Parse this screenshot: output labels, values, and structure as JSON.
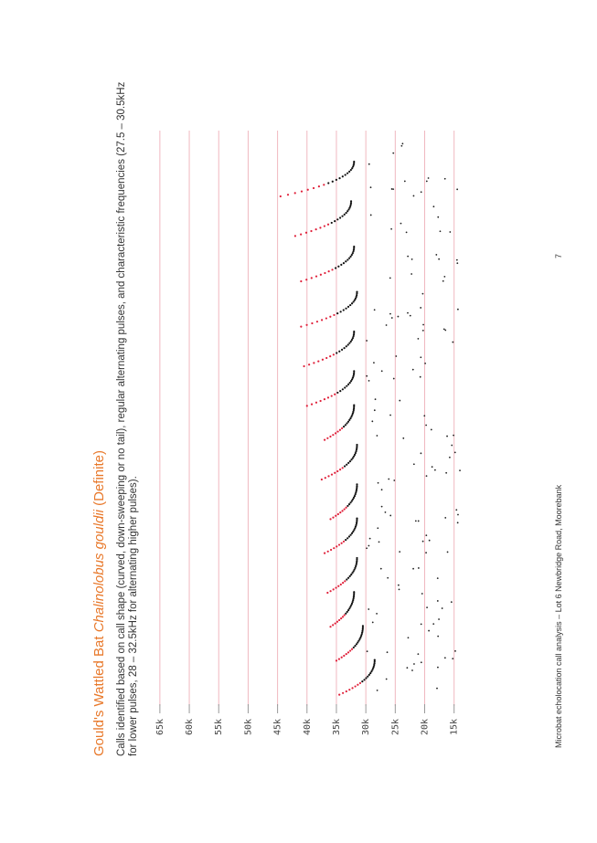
{
  "document": {
    "title_prefix": "Gould's Wattled Bat ",
    "title_species": "Chalinolobus gouldii",
    "title_suffix": " (Definite)",
    "description": "Calls identified based on call shape (curved, down-sweeping or no tail), regular alternating pulses, and characteristic frequencies (27.5 – 30.5kHz for lower pulses, 28 – 32.5kHz for alternating higher pulses).",
    "footer": "Microbat echolocation call analysis – Lot 6 Newbridge Road, Moorebank",
    "page_number": "7"
  },
  "colors": {
    "title": "#e8782a",
    "gridline": "#f0b8c0",
    "call_dots": "#111111",
    "call_highlight": "#e0203a",
    "noise_dots": "#222222"
  },
  "chart_data": {
    "type": "scatter",
    "title": "",
    "xlabel": "",
    "ylabel": "",
    "ylim": [
      12,
      67
    ],
    "grid": true,
    "y_ticks": [
      {
        "value": 65,
        "label": "65k"
      },
      {
        "value": 60,
        "label": "60k"
      },
      {
        "value": 55,
        "label": "55k"
      },
      {
        "value": 50,
        "label": "50k"
      },
      {
        "value": 45,
        "label": "45k"
      },
      {
        "value": 40,
        "label": "40k"
      },
      {
        "value": 35,
        "label": "35k"
      },
      {
        "value": 30,
        "label": "30k"
      },
      {
        "value": 25,
        "label": "25k"
      },
      {
        "value": 20,
        "label": "20k"
      },
      {
        "value": 15,
        "label": "15k"
      }
    ],
    "calls": [
      {
        "t": 0.02,
        "start_khz": 34.5,
        "end_khz": 28.5
      },
      {
        "t": 0.08,
        "start_khz": 35.0,
        "end_khz": 30.5
      },
      {
        "t": 0.14,
        "start_khz": 36.0,
        "end_khz": 32.0
      },
      {
        "t": 0.2,
        "start_khz": 36.5,
        "end_khz": 31.5
      },
      {
        "t": 0.27,
        "start_khz": 37.0,
        "end_khz": 31.5
      },
      {
        "t": 0.33,
        "start_khz": 36.0,
        "end_khz": 31.5
      },
      {
        "t": 0.4,
        "start_khz": 37.5,
        "end_khz": 31.5
      },
      {
        "t": 0.47,
        "start_khz": 37.0,
        "end_khz": 32.0
      },
      {
        "t": 0.53,
        "start_khz": 40.0,
        "end_khz": 32.0
      },
      {
        "t": 0.6,
        "start_khz": 40.5,
        "end_khz": 32.0
      },
      {
        "t": 0.67,
        "start_khz": 41.0,
        "end_khz": 31.5
      },
      {
        "t": 0.75,
        "start_khz": 41.0,
        "end_khz": 32.0
      },
      {
        "t": 0.83,
        "start_khz": 42.0,
        "end_khz": 32.5
      },
      {
        "t": 0.9,
        "start_khz": 44.5,
        "end_khz": 32.0
      }
    ]
  }
}
